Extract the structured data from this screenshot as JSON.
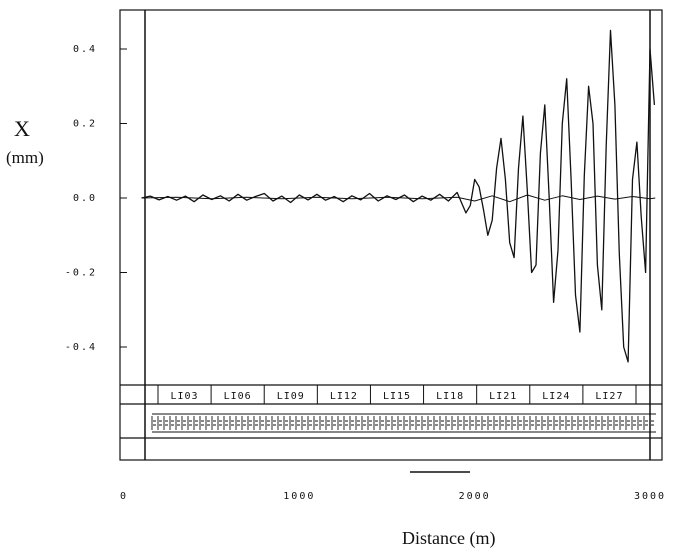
{
  "chart_data": {
    "type": "line",
    "xlabel": "Distance (m)",
    "ylabel": [
      "X",
      "(mm)"
    ],
    "xlim": [
      0,
      3100
    ],
    "ylim": [
      -0.5,
      0.5
    ],
    "x_ticks": [
      0,
      1000,
      2000,
      3000
    ],
    "y_ticks": [
      -0.4,
      -0.2,
      0.0,
      0.2,
      0.4
    ],
    "x_tick_labels": [
      "0",
      "1000",
      "2000",
      "3000"
    ],
    "y_tick_labels": [
      "-0.4",
      "-0.2",
      "0.0",
      "0.2",
      "0.4"
    ],
    "grid": false,
    "sector_labels": [
      "LI03",
      "LI06",
      "LI09",
      "LI12",
      "LI15",
      "LI18",
      "LI21",
      "LI24",
      "LI27"
    ],
    "series": [
      {
        "x": [
          100,
          150,
          200,
          250,
          300,
          350,
          400,
          450,
          500,
          550,
          600,
          650,
          700,
          750,
          800,
          850,
          900,
          950,
          1000,
          1050,
          1100,
          1150,
          1200,
          1250,
          1300,
          1350,
          1400,
          1450,
          1500,
          1550,
          1600,
          1650,
          1700,
          1750,
          1800,
          1850,
          1900,
          1950,
          1975,
          2000,
          2025,
          2050,
          2075,
          2100,
          2125,
          2150,
          2175,
          2200,
          2225,
          2250,
          2275,
          2300,
          2325,
          2350,
          2375,
          2400,
          2425,
          2450,
          2475,
          2500,
          2525,
          2550,
          2575,
          2600,
          2625,
          2650,
          2675,
          2700,
          2725,
          2750,
          2775,
          2800,
          2825,
          2850,
          2875,
          2900,
          2925,
          2950,
          2975,
          3000,
          3025
        ],
        "y": [
          0.0,
          0.005,
          -0.005,
          0.004,
          -0.006,
          0.005,
          -0.01,
          0.008,
          -0.004,
          0.006,
          -0.008,
          0.01,
          -0.006,
          0.004,
          0.012,
          -0.008,
          0.005,
          -0.012,
          0.008,
          -0.005,
          0.01,
          -0.006,
          0.004,
          -0.01,
          0.006,
          -0.005,
          0.012,
          -0.008,
          0.006,
          -0.004,
          0.008,
          -0.01,
          0.005,
          -0.006,
          0.01,
          -0.008,
          0.015,
          -0.04,
          -0.02,
          0.05,
          0.03,
          -0.03,
          -0.1,
          -0.06,
          0.08,
          0.16,
          0.05,
          -0.12,
          -0.16,
          0.08,
          0.22,
          0.02,
          -0.2,
          -0.18,
          0.12,
          0.25,
          0.0,
          -0.28,
          -0.14,
          0.2,
          0.32,
          0.05,
          -0.26,
          -0.36,
          0.06,
          0.3,
          0.2,
          -0.18,
          -0.3,
          0.14,
          0.45,
          0.25,
          -0.15,
          -0.4,
          -0.44,
          0.05,
          0.15,
          -0.05,
          -0.2,
          0.4,
          0.25
        ]
      },
      {
        "x": [
          100,
          300,
          500,
          700,
          900,
          1100,
          1300,
          1500,
          1700,
          1900,
          2000,
          2100,
          2200,
          2300,
          2400,
          2500,
          2600,
          2700,
          2800,
          2900,
          3000,
          3030
        ],
        "y": [
          0.0,
          0.002,
          -0.002,
          0.002,
          -0.002,
          0.002,
          -0.002,
          0.002,
          -0.002,
          0.002,
          -0.008,
          0.006,
          -0.01,
          0.008,
          -0.006,
          0.006,
          -0.004,
          0.005,
          -0.003,
          0.004,
          -0.002,
          0.0
        ]
      }
    ]
  }
}
